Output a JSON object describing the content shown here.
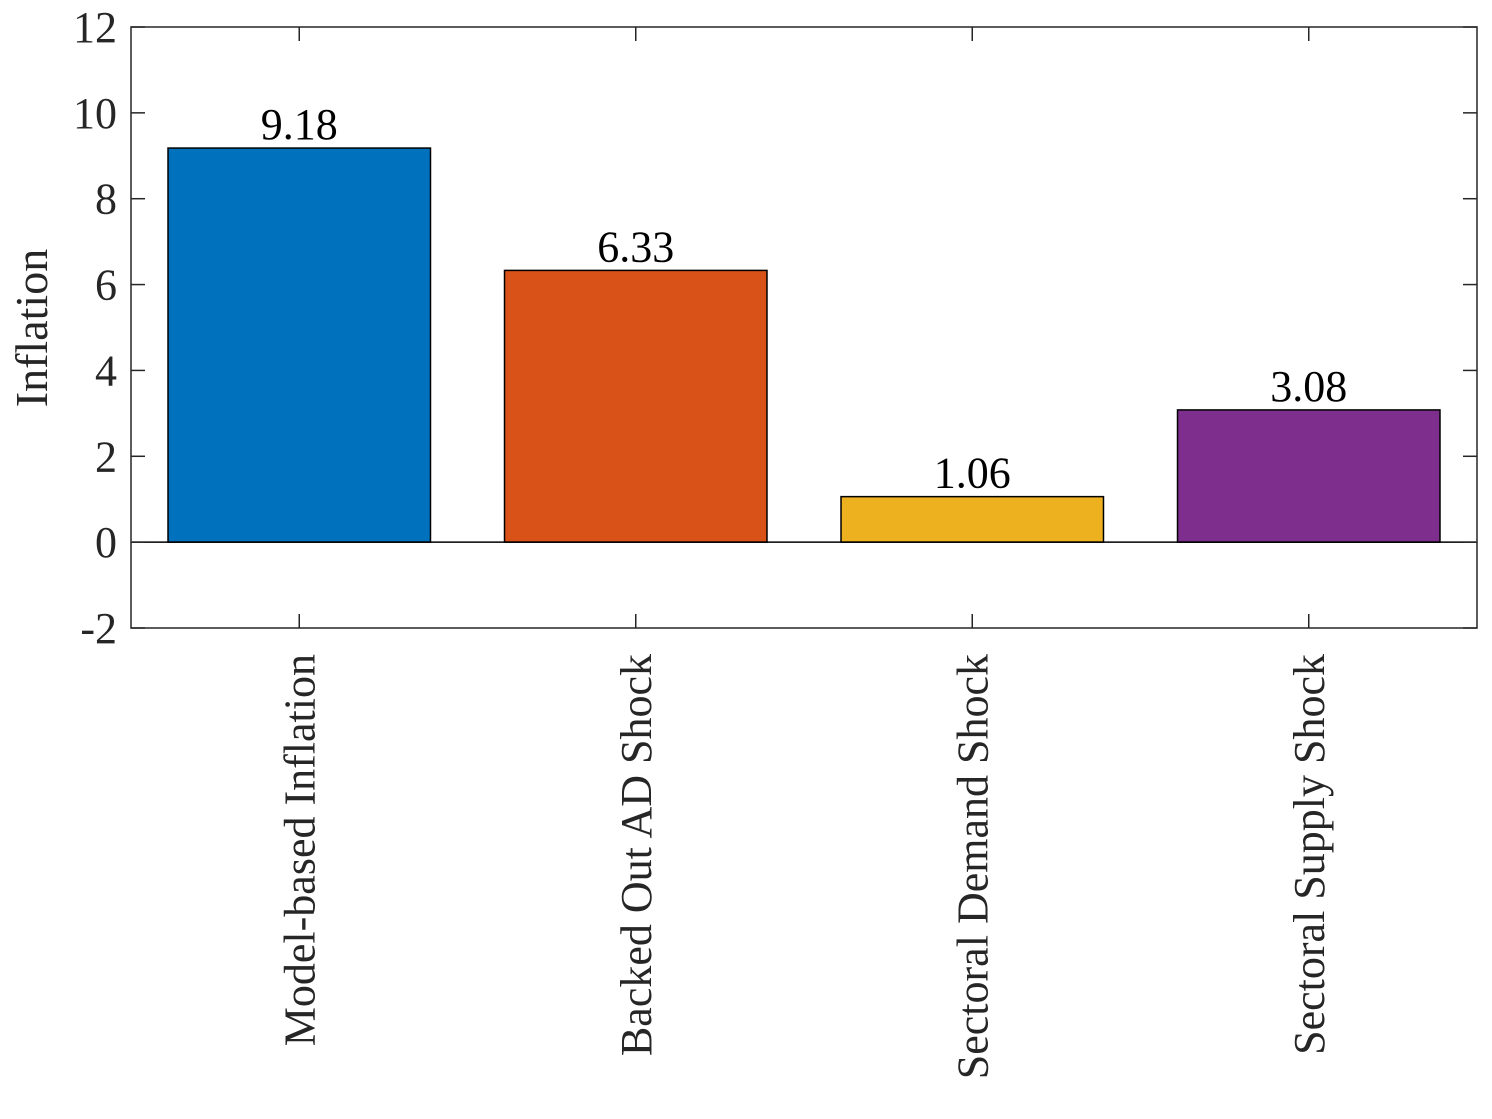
{
  "chart_data": {
    "type": "bar",
    "title": "",
    "xlabel": "",
    "ylabel": "Inflation",
    "ylim": [
      -2,
      12
    ],
    "yticks": [
      -2,
      0,
      2,
      4,
      6,
      8,
      10,
      12
    ],
    "grid": false,
    "categories": [
      "Model-based Inflation",
      "Backed Out AD Shock",
      "Sectoral Demand Shock",
      "Sectoral Supply Shock"
    ],
    "values": [
      9.18,
      6.33,
      1.06,
      3.08
    ],
    "value_labels": [
      "9.18",
      "6.33",
      "1.06",
      "3.08"
    ],
    "colors": [
      "#0072BD",
      "#D95319",
      "#EDB120",
      "#7E2F8E"
    ]
  }
}
